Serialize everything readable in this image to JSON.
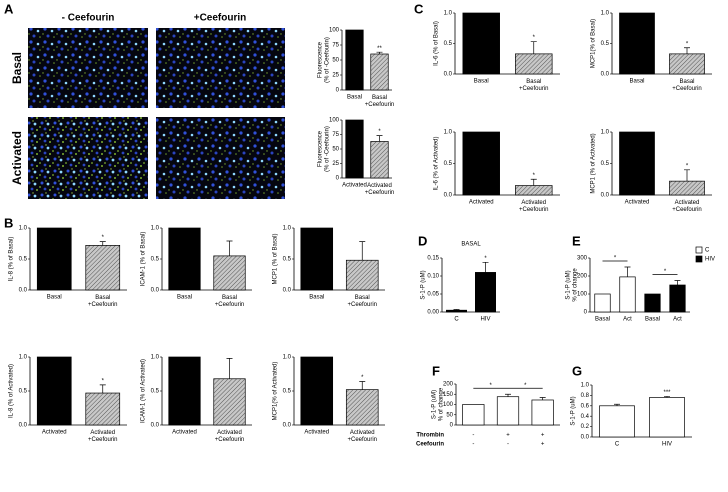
{
  "panel_letters": [
    "A",
    "B",
    "C",
    "D",
    "E",
    "F",
    "G"
  ],
  "image_panel": {
    "columns": [
      "- Ceefourin",
      "+Ceefourin"
    ],
    "rows": [
      "Basal",
      "Activated"
    ]
  },
  "chart_data": [
    {
      "type": "bar",
      "ylabel": "Fluorescence\n(% of -Ceefourin)",
      "categories": [
        "Basal",
        "Basal\n+Ceefourin"
      ],
      "values": [
        100,
        60
      ],
      "errors": [
        null,
        3
      ],
      "significance": [
        null,
        "**"
      ],
      "colors": [
        "#000000",
        "#b0b0b0"
      ],
      "hatched": [
        false,
        true
      ],
      "ylim": [
        0,
        100
      ],
      "yticks": [
        0,
        25,
        50,
        75,
        100
      ]
    },
    {
      "type": "bar",
      "ylabel": "Fluorescence\n(% of -Ceefourin)",
      "categories": [
        "Activated",
        "Activated\n+Ceefourin"
      ],
      "values": [
        100,
        63
      ],
      "errors": [
        null,
        10
      ],
      "significance": [
        null,
        "*"
      ],
      "colors": [
        "#000000",
        "#b0b0b0"
      ],
      "hatched": [
        false,
        true
      ],
      "ylim": [
        0,
        100
      ],
      "yticks": [
        0,
        25,
        50,
        75,
        100
      ]
    },
    {
      "type": "bar",
      "ylabel": "IL-6 (% of Basal)",
      "categories": [
        "Basal",
        "Basal\n+Ceefourin"
      ],
      "values": [
        1,
        0.33
      ],
      "errors": [
        null,
        0.2
      ],
      "significance": [
        null,
        "*"
      ],
      "colors": [
        "#000000",
        "#b0b0b0"
      ],
      "hatched": [
        false,
        true
      ],
      "ylim": [
        0,
        1
      ],
      "yticks": [
        {
          "value": 0,
          "label": "0.0"
        },
        {
          "value": 0.5,
          "label": "0.5"
        },
        {
          "value": 1,
          "label": "1.0"
        }
      ]
    },
    {
      "type": "bar",
      "ylabel": "MCP1(% of Basal)",
      "categories": [
        "Basal",
        "Basal\n+Ceefourin"
      ],
      "values": [
        1,
        0.33
      ],
      "errors": [
        null,
        0.1
      ],
      "significance": [
        null,
        "*"
      ],
      "colors": [
        "#000000",
        "#b0b0b0"
      ],
      "hatched": [
        false,
        true
      ],
      "ylim": [
        0,
        1
      ],
      "yticks": [
        {
          "value": 0,
          "label": "0.0"
        },
        {
          "value": 0.5,
          "label": "0.5"
        },
        {
          "value": 1,
          "label": "1.0"
        }
      ]
    },
    {
      "type": "bar",
      "ylabel": "IL-6 (% of Activated)",
      "categories": [
        "Activated",
        "Activated\n+Ceefourin"
      ],
      "values": [
        1,
        0.15
      ],
      "errors": [
        null,
        0.1
      ],
      "significance": [
        null,
        "*"
      ],
      "colors": [
        "#000000",
        "#b0b0b0"
      ],
      "hatched": [
        false,
        true
      ],
      "ylim": [
        0,
        1
      ],
      "yticks": [
        {
          "value": 0,
          "label": "0.0"
        },
        {
          "value": 0.5,
          "label": "0.5"
        },
        {
          "value": 1,
          "label": "1.0"
        }
      ]
    },
    {
      "type": "bar",
      "ylabel": "MCP1 (% of Activated)",
      "categories": [
        "Activated",
        "Activated\n+Ceefourin"
      ],
      "values": [
        1,
        0.22
      ],
      "errors": [
        null,
        0.18
      ],
      "significance": [
        null,
        "*"
      ],
      "colors": [
        "#000000",
        "#b0b0b0"
      ],
      "hatched": [
        false,
        true
      ],
      "ylim": [
        0,
        1
      ],
      "yticks": [
        {
          "value": 0,
          "label": "0.0"
        },
        {
          "value": 0.5,
          "label": "0.5"
        },
        {
          "value": 1,
          "label": "1.0"
        }
      ]
    },
    {
      "type": "bar",
      "ylabel": "IL-8 (% of Basal)",
      "categories": [
        "Basal",
        "Basal\n+Ceefourin"
      ],
      "values": [
        1,
        0.72
      ],
      "errors": [
        null,
        0.06
      ],
      "significance": [
        null,
        "*"
      ],
      "colors": [
        "#000000",
        "#b0b0b0"
      ],
      "hatched": [
        false,
        true
      ],
      "ylim": [
        0,
        1
      ],
      "yticks": [
        {
          "value": 0,
          "label": "0.0"
        },
        {
          "value": 0.5,
          "label": "0.5"
        },
        {
          "value": 1,
          "label": "1.0"
        }
      ]
    },
    {
      "type": "bar",
      "ylabel": "ICAM-1 (% of Basal)",
      "categories": [
        "Basal",
        "Basal\n+Ceefourin"
      ],
      "values": [
        1,
        0.55
      ],
      "errors": [
        null,
        0.24
      ],
      "significance": [
        null,
        null
      ],
      "colors": [
        "#000000",
        "#b0b0b0"
      ],
      "hatched": [
        false,
        true
      ],
      "ylim": [
        0,
        1
      ],
      "yticks": [
        {
          "value": 0,
          "label": "0.0"
        },
        {
          "value": 0.5,
          "label": "0.5"
        },
        {
          "value": 1,
          "label": "1.0"
        }
      ]
    },
    {
      "type": "bar",
      "ylabel": "MCP1 (% of Basal)",
      "categories": [
        "Basal",
        "Basal\n+Ceefourin"
      ],
      "values": [
        1,
        0.48
      ],
      "errors": [
        null,
        0.3
      ],
      "significance": [
        null,
        null
      ],
      "colors": [
        "#000000",
        "#b0b0b0"
      ],
      "hatched": [
        false,
        true
      ],
      "ylim": [
        0,
        1
      ],
      "yticks": [
        {
          "value": 0,
          "label": "0.0"
        },
        {
          "value": 0.5,
          "label": "0.5"
        },
        {
          "value": 1,
          "label": "1.0"
        }
      ]
    },
    {
      "type": "bar",
      "ylabel": "IL-8 (% of Activated)",
      "categories": [
        "Activated",
        "Activated\n+Ceefourin"
      ],
      "values": [
        1,
        0.47
      ],
      "errors": [
        null,
        0.12
      ],
      "significance": [
        null,
        "*"
      ],
      "colors": [
        "#000000",
        "#b0b0b0"
      ],
      "hatched": [
        false,
        true
      ],
      "ylim": [
        0,
        1
      ],
      "yticks": [
        {
          "value": 0,
          "label": "0.0"
        },
        {
          "value": 0.5,
          "label": "0.5"
        },
        {
          "value": 1,
          "label": "1.0"
        }
      ]
    },
    {
      "type": "bar",
      "ylabel": "ICAM-1 (% of Activated)",
      "categories": [
        "Activated",
        "Activated\n+Ceefourin"
      ],
      "values": [
        1,
        0.68
      ],
      "errors": [
        null,
        0.3
      ],
      "significance": [
        null,
        null
      ],
      "colors": [
        "#000000",
        "#b0b0b0"
      ],
      "hatched": [
        false,
        true
      ],
      "ylim": [
        0,
        1
      ],
      "yticks": [
        {
          "value": 0,
          "label": "0.0"
        },
        {
          "value": 0.5,
          "label": "0.5"
        },
        {
          "value": 1,
          "label": "1.0"
        }
      ]
    },
    {
      "type": "bar",
      "ylabel": "MCP1(% of Activated)",
      "categories": [
        "Activated",
        "Activated\n+Ceefourin"
      ],
      "values": [
        1,
        0.52
      ],
      "errors": [
        null,
        0.12
      ],
      "significance": [
        null,
        "*"
      ],
      "colors": [
        "#000000",
        "#b0b0b0"
      ],
      "hatched": [
        false,
        true
      ],
      "ylim": [
        0,
        1
      ],
      "yticks": [
        {
          "value": 0,
          "label": "0.0"
        },
        {
          "value": 0.5,
          "label": "0.5"
        },
        {
          "value": 1,
          "label": "1.0"
        }
      ]
    },
    {
      "type": "bar",
      "title": "BASAL",
      "ylabel": "S-1-P (uM)",
      "categories": [
        "C",
        "HIV"
      ],
      "values": [
        0.005,
        0.11
      ],
      "errors": [
        0.002,
        0.028
      ],
      "significance": [
        null,
        "*"
      ],
      "colors": [
        "#000000",
        "#000000"
      ],
      "hatched": [
        false,
        false
      ],
      "ylim": [
        0,
        0.15
      ],
      "yticks": [
        {
          "value": 0,
          "label": "0.00"
        },
        {
          "value": 0.05,
          "label": "0.05"
        },
        {
          "value": 0.1,
          "label": "0.10"
        },
        {
          "value": 0.15,
          "label": "0.15"
        }
      ]
    },
    {
      "type": "bar",
      "ylabel": "S-1-P (uM)\n% of change",
      "categories": [
        "Basal",
        "Act",
        "Basal",
        "Act"
      ],
      "values": [
        100,
        195,
        100,
        150
      ],
      "errors": [
        null,
        55,
        null,
        25
      ],
      "colors": [
        "#ffffff",
        "#ffffff",
        "#000000",
        "#000000"
      ],
      "hatched": [
        false,
        false,
        false,
        false
      ],
      "brackets": [
        {
          "label": "*"
        },
        {
          "label": "*"
        }
      ],
      "legend": [
        {
          "name": "C",
          "color": "#ffffff"
        },
        {
          "name": "HIV",
          "color": "#000000"
        }
      ],
      "ylim": [
        0,
        300
      ],
      "yticks": [
        0,
        100,
        200,
        300
      ]
    },
    {
      "type": "bar",
      "ylabel": "S-1-P (uM)\n% of change",
      "values": [
        100,
        138,
        122
      ],
      "errors": [
        null,
        12,
        12
      ],
      "colors": [
        "#ffffff",
        "#ffffff",
        "#ffffff"
      ],
      "hatched": [
        false,
        false,
        false
      ],
      "brackets": [
        {
          "label": "*"
        },
        {
          "label": "*"
        }
      ],
      "condition_rows": [
        {
          "name": "Thrombin",
          "values": [
            "-",
            "+",
            "+"
          ]
        },
        {
          "name": "Ceefourin",
          "values": [
            "-",
            "-",
            "+"
          ]
        }
      ],
      "ylim": [
        0,
        200
      ],
      "yticks": [
        0,
        50,
        100,
        150,
        200
      ]
    },
    {
      "type": "bar",
      "ylabel": "S-1-P (uM)",
      "categories": [
        "C",
        "HIV"
      ],
      "values": [
        0.6,
        0.76
      ],
      "errors": [
        0.03,
        0.02
      ],
      "significance": [
        null,
        "***"
      ],
      "colors": [
        "#ffffff",
        "#ffffff"
      ],
      "hatched": [
        false,
        false
      ],
      "ylim": [
        0,
        1
      ],
      "yticks": [
        {
          "value": 0,
          "label": "0.0"
        },
        {
          "value": 0.2,
          "label": "0.2"
        },
        {
          "value": 0.4,
          "label": "0.4"
        },
        {
          "value": 0.6,
          "label": "0.6"
        },
        {
          "value": 0.8,
          "label": "0.8"
        },
        {
          "value": 1,
          "label": "1.0"
        }
      ]
    }
  ]
}
